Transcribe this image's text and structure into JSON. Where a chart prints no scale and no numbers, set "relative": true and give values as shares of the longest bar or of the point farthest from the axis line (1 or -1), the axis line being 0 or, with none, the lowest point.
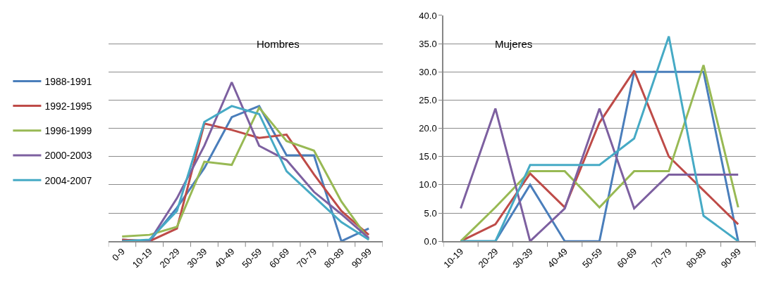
{
  "chart_data": [
    {
      "type": "line",
      "title": "Hombres",
      "relative": true,
      "grid": "y",
      "legend": "left",
      "marker": "none",
      "categories": [
        "0-9",
        "10-19",
        "20-29",
        "30-39",
        "40-49",
        "50-59",
        "60-69",
        "70-79",
        "80-89",
        "90-99"
      ],
      "series": [
        {
          "name": "1988-1991",
          "color": "#4a7ebb",
          "values": [
            0.01,
            0,
            0.21,
            0.46,
            0.78,
            0.85,
            0.54,
            0.54,
            0,
            0.08
          ]
        },
        {
          "name": "1992-1995",
          "color": "#be4b48",
          "values": [
            0.01,
            0,
            0.08,
            0.74,
            0.7,
            0.65,
            0.67,
            0.42,
            0.19,
            0.04
          ]
        },
        {
          "name": "1996-1999",
          "color": "#98b954",
          "values": [
            0.03,
            0.04,
            0.09,
            0.5,
            0.48,
            0.84,
            0.63,
            0.57,
            0.25,
            0.01
          ]
        },
        {
          "name": "2000-2003",
          "color": "#7d60a0",
          "values": [
            0,
            0,
            0.27,
            0.6,
            1,
            0.6,
            0.51,
            0.31,
            0.17,
            0.02
          ]
        },
        {
          "name": "2004-2007",
          "color": "#46aac5",
          "values": [
            0,
            0.01,
            0.19,
            0.75,
            0.85,
            0.8,
            0.44,
            0.28,
            0.12,
            0.01
          ]
        }
      ]
    },
    {
      "type": "line",
      "title": "Mujeres",
      "grid": "y",
      "marker": "none",
      "categories": [
        "10-19",
        "20-29",
        "30-39",
        "40-49",
        "50-59",
        "60-69",
        "70-79",
        "80-89",
        "90-99"
      ],
      "ylim": [
        0,
        40
      ],
      "yticks": [
        {
          "value": 0,
          "label": "0.0"
        },
        {
          "value": 5,
          "label": "5.0"
        },
        {
          "value": 10,
          "label": "10.0"
        },
        {
          "value": 15,
          "label": "15.0"
        },
        {
          "value": 20,
          "label": "20.0"
        },
        {
          "value": 25,
          "label": "25.0"
        },
        {
          "value": 30,
          "label": "30.0"
        },
        {
          "value": 35,
          "label": "35.0"
        },
        {
          "value": 40,
          "label": "40.0"
        }
      ],
      "series": [
        {
          "color": "#4a7ebb",
          "values": [
            0,
            0,
            10,
            0,
            0,
            30,
            30,
            30,
            0
          ]
        },
        {
          "color": "#be4b48",
          "values": [
            0,
            3,
            12,
            6,
            21,
            30.2,
            15,
            9,
            3
          ]
        },
        {
          "color": "#98b954",
          "values": [
            0,
            6,
            12.4,
            12.4,
            6,
            12.4,
            12.4,
            31.2,
            6
          ]
        },
        {
          "color": "#7d60a0",
          "values": [
            5.8,
            23.5,
            0,
            5.8,
            23.5,
            5.8,
            11.8,
            11.8,
            11.8
          ]
        },
        {
          "color": "#46aac5",
          "values": [
            0,
            0,
            13.5,
            13.5,
            13.5,
            18.2,
            36.3,
            4.5,
            0
          ]
        }
      ]
    }
  ]
}
